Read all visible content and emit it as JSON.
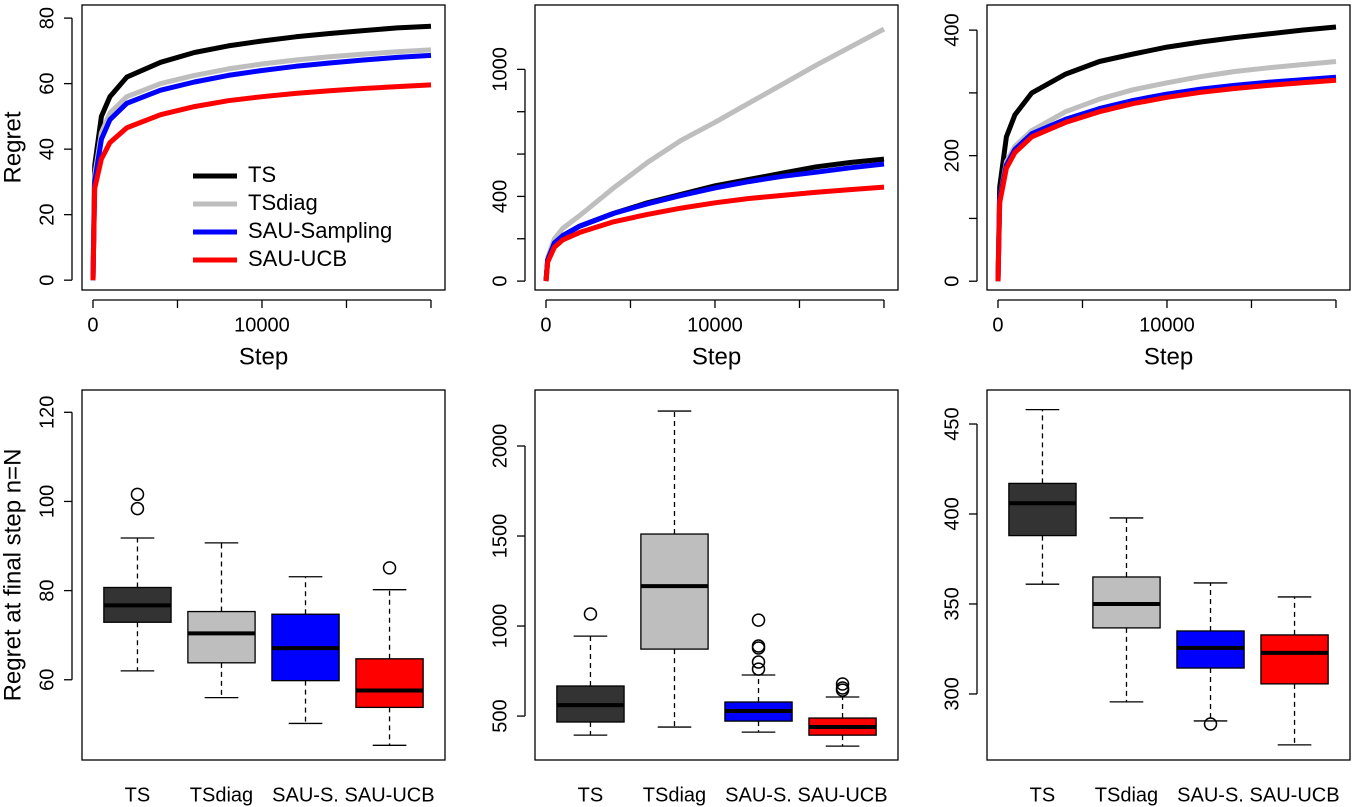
{
  "chart_data": [
    {
      "type": "line",
      "xlabel": "Step",
      "ylabel": "Regret",
      "x": [
        0,
        100,
        500,
        1000,
        2000,
        4000,
        6000,
        8000,
        10000,
        12000,
        14000,
        16000,
        18000,
        20000
      ],
      "xlim": [
        -650,
        20830
      ],
      "ylim": [
        -3,
        84
      ],
      "xticks": [
        0,
        {
          "value": 5000,
          "label": null
        },
        10000,
        {
          "value": 15000,
          "label": null
        },
        {
          "value": 20000,
          "label": null
        }
      ],
      "yticks": [
        0,
        20,
        40,
        60,
        80
      ],
      "legend": "bottom-right",
      "series": [
        {
          "name": "TS",
          "color": "#000000",
          "values": [
            0,
            35,
            50,
            56,
            62,
            66.5,
            69.5,
            71.5,
            73,
            74.3,
            75.3,
            76.2,
            77,
            77.5
          ]
        },
        {
          "name": "TSdiag",
          "color": "#bebebe",
          "values": [
            0,
            32,
            45,
            51,
            56,
            60,
            62.5,
            64.5,
            66,
            67.2,
            68.2,
            69,
            69.7,
            70.3
          ]
        },
        {
          "name": "SAU-Sampling",
          "color": "#0000ff",
          "values": [
            0,
            30,
            43,
            49,
            54,
            58,
            60.5,
            62.5,
            64,
            65.3,
            66.3,
            67.2,
            68,
            68.6
          ]
        },
        {
          "name": "SAU-UCB",
          "color": "#ff0000",
          "values": [
            0,
            28,
            37,
            42,
            46.5,
            50.5,
            53,
            54.8,
            56,
            57,
            57.8,
            58.5,
            59.1,
            59.6
          ]
        }
      ]
    },
    {
      "type": "line",
      "xlabel": "Step",
      "x": [
        0,
        100,
        500,
        1000,
        2000,
        4000,
        6000,
        8000,
        10000,
        12000,
        14000,
        16000,
        18000,
        20000
      ],
      "xlim": [
        -650,
        20830
      ],
      "ylim": [
        -42,
        1304
      ],
      "xticks": [
        0,
        {
          "value": 5000,
          "label": null
        },
        10000,
        {
          "value": 15000,
          "label": null
        },
        {
          "value": 20000,
          "label": null
        }
      ],
      "yticks": [
        0,
        {
          "value": 200,
          "label": null
        },
        400,
        {
          "value": 600,
          "label": null
        },
        {
          "value": 800,
          "label": null
        },
        1000
      ],
      "series": [
        {
          "color": "#bebebe",
          "values": [
            0,
            110,
            200,
            250,
            310,
            440,
            560,
            665,
            750,
            840,
            930,
            1020,
            1105,
            1190
          ]
        },
        {
          "color": "#000000",
          "values": [
            0,
            100,
            180,
            215,
            260,
            320,
            370,
            410,
            450,
            480,
            510,
            540,
            560,
            576
          ]
        },
        {
          "color": "#0000ff",
          "values": [
            0,
            100,
            180,
            215,
            260,
            320,
            365,
            405,
            440,
            470,
            495,
            515,
            535,
            553
          ]
        },
        {
          "color": "#ff0000",
          "values": [
            0,
            90,
            160,
            195,
            230,
            280,
            315,
            345,
            370,
            390,
            405,
            420,
            432,
            444
          ]
        }
      ]
    },
    {
      "type": "line",
      "xlabel": "Step",
      "x": [
        0,
        100,
        500,
        1000,
        2000,
        4000,
        6000,
        8000,
        10000,
        12000,
        14000,
        16000,
        18000,
        20000
      ],
      "xlim": [
        -650,
        20830
      ],
      "ylim": [
        -14,
        440
      ],
      "xticks": [
        0,
        {
          "value": 5000,
          "label": null
        },
        10000,
        {
          "value": 15000,
          "label": null
        },
        {
          "value": 20000,
          "label": null
        }
      ],
      "yticks": [
        0,
        {
          "value": 100,
          "label": null
        },
        200,
        {
          "value": 300,
          "label": null
        },
        400
      ],
      "series": [
        {
          "color": "#000000",
          "values": [
            0,
            150,
            230,
            265,
            300,
            330,
            350,
            362,
            373,
            381,
            388,
            394,
            400,
            405
          ]
        },
        {
          "color": "#bebebe",
          "values": [
            0,
            130,
            190,
            215,
            240,
            270,
            290,
            305,
            316,
            326,
            334,
            340,
            345,
            350
          ]
        },
        {
          "color": "#0000ff",
          "values": [
            0,
            130,
            185,
            210,
            235,
            258,
            275,
            288,
            298,
            306,
            312,
            317,
            321,
            325
          ]
        },
        {
          "color": "#ff0000",
          "values": [
            0,
            125,
            180,
            205,
            230,
            253,
            270,
            283,
            293,
            301,
            307,
            312,
            316,
            320
          ]
        }
      ]
    },
    {
      "type": "box",
      "ylabel": "Regret at final step n=N",
      "categories": [
        "TS",
        "TSdiag",
        "SAU-S.",
        "SAU-UCB"
      ],
      "xlim": [
        0.34,
        4.66
      ],
      "ylim": [
        42,
        125
      ],
      "yticks": [
        60,
        80,
        100,
        120
      ],
      "boxes": [
        {
          "color": "#333333",
          "whisker_low": 62,
          "q1": 72.9,
          "median": 76.7,
          "q3": 80.7,
          "whisker_high": 91.8,
          "outliers": [
            98.4,
            101.6
          ]
        },
        {
          "color": "#bebebe",
          "whisker_low": 56,
          "q1": 63.8,
          "median": 70.4,
          "q3": 75.3,
          "whisker_high": 90.7,
          "outliers": []
        },
        {
          "color": "#0000ff",
          "whisker_low": 50.2,
          "q1": 59.8,
          "median": 67.1,
          "q3": 74.7,
          "whisker_high": 83.1,
          "outliers": []
        },
        {
          "color": "#ff0000",
          "whisker_low": 45.3,
          "q1": 53.8,
          "median": 57.6,
          "q3": 64.7,
          "whisker_high": 80.2,
          "outliers": [
            85.1
          ]
        }
      ]
    },
    {
      "type": "box",
      "categories": [
        "TS",
        "TSdiag",
        "SAU-S.",
        "SAU-UCB"
      ],
      "xlim": [
        0.34,
        4.66
      ],
      "ylim": [
        256,
        2311
      ],
      "yticks": [
        500,
        1000,
        1500,
        2000
      ],
      "boxes": [
        {
          "color": "#333333",
          "whisker_low": 394,
          "q1": 467,
          "median": 561,
          "q3": 667,
          "whisker_high": 944,
          "outliers": [
            1067
          ]
        },
        {
          "color": "#bebebe",
          "whisker_low": 439,
          "q1": 872,
          "median": 1222,
          "q3": 1511,
          "whisker_high": 2194,
          "outliers": []
        },
        {
          "color": "#0000ff",
          "whisker_low": 411,
          "q1": 472,
          "median": 528,
          "q3": 578,
          "whisker_high": 728,
          "outliers": [
            761,
            800,
            878,
            889,
            1033
          ]
        },
        {
          "color": "#ff0000",
          "whisker_low": 333,
          "q1": 394,
          "median": 439,
          "q3": 489,
          "whisker_high": 606,
          "outliers": [
            644,
            656,
            678
          ]
        }
      ]
    },
    {
      "type": "box",
      "categories": [
        "TS",
        "TSdiag",
        "SAU-S.",
        "SAU-UCB"
      ],
      "xlim": [
        0.34,
        4.66
      ],
      "ylim": [
        263.3,
        468.9
      ],
      "yticks": [
        300,
        350,
        400,
        450
      ],
      "boxes": [
        {
          "color": "#333333",
          "whisker_low": 361,
          "q1": 388,
          "median": 406,
          "q3": 417,
          "whisker_high": 458,
          "outliers": []
        },
        {
          "color": "#bebebe",
          "whisker_low": 295.6,
          "q1": 336.7,
          "median": 350,
          "q3": 365,
          "whisker_high": 397.8,
          "outliers": []
        },
        {
          "color": "#0000ff",
          "whisker_low": 285,
          "q1": 314.4,
          "median": 325.6,
          "q3": 335,
          "whisker_high": 361.7,
          "outliers": [
            283.3
          ]
        },
        {
          "color": "#ff0000",
          "whisker_low": 271.7,
          "q1": 305.6,
          "median": 322.8,
          "q3": 332.8,
          "whisker_high": 353.9,
          "outliers": []
        }
      ]
    }
  ]
}
